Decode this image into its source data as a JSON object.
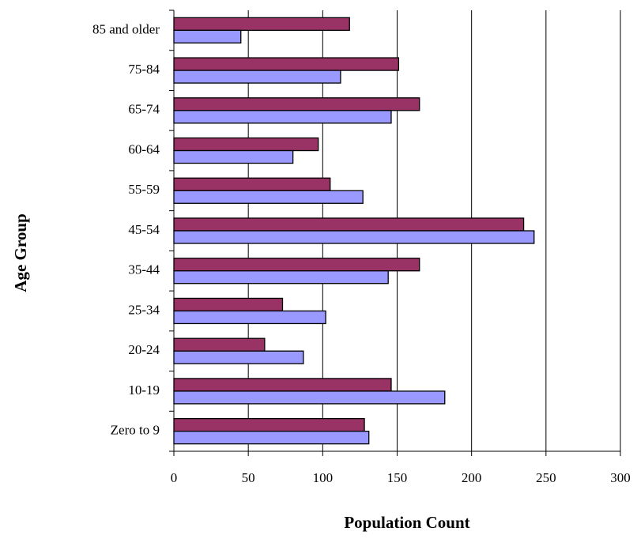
{
  "chart_data": {
    "type": "hbar",
    "categories": [
      "Zero to 9",
      "10-19",
      "20-24",
      "25-34",
      "35-44",
      "45-54",
      "55-59",
      "60-64",
      "65-74",
      "75-84",
      "85 and older"
    ],
    "series": [
      {
        "color": "#993366",
        "values": [
          128,
          146,
          61,
          73,
          165,
          235,
          105,
          97,
          165,
          151,
          118
        ]
      },
      {
        "color": "#9999ff",
        "values": [
          131,
          182,
          87,
          102,
          144,
          242,
          127,
          80,
          146,
          112,
          45
        ]
      }
    ],
    "xlim": [
      0,
      300
    ],
    "xticks": [
      0,
      50,
      100,
      150,
      200,
      250,
      300
    ],
    "grid": true,
    "xlabel": "Population Count",
    "ylabel": "Age Group"
  }
}
